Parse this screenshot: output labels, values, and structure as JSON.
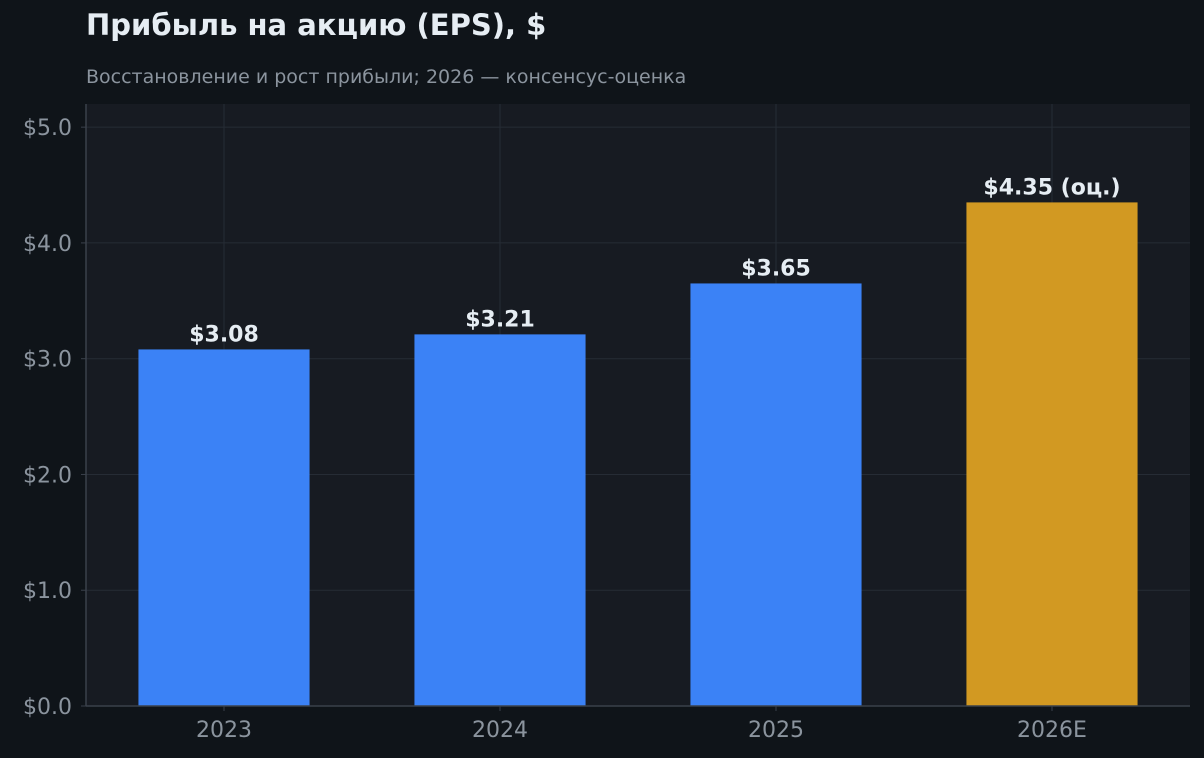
{
  "title": "Прибыль на акцию (EPS), $",
  "subtitle": "Восстановление и рост прибыли; 2026 — консенсус-оценка",
  "colors": {
    "background": "#0f1419",
    "plot_background": "#171b22",
    "grid": "#262c35",
    "axis": "#3a414b",
    "text_primary": "#e6edf3",
    "text_muted": "#8b949e",
    "actual_bar": "#3b82f6",
    "estimate_bar": "#d29922"
  },
  "chart_data": {
    "type": "bar",
    "categories": [
      "2023",
      "2024",
      "2025",
      "2026E"
    ],
    "values": [
      3.08,
      3.21,
      3.65,
      4.35
    ],
    "data_labels": [
      "$3.08",
      "$3.21",
      "$3.65",
      "$4.35 (оц.)"
    ],
    "estimate_flags": [
      false,
      false,
      false,
      true
    ],
    "y_ticks": [
      0,
      1,
      2,
      3,
      4,
      5
    ],
    "y_tick_labels": [
      "$0.0",
      "$1.0",
      "$2.0",
      "$3.0",
      "$4.0",
      "$5.0"
    ],
    "ylim": [
      0,
      5.2
    ],
    "xlabel": "",
    "ylabel": "",
    "grid": true,
    "legend": "none"
  }
}
